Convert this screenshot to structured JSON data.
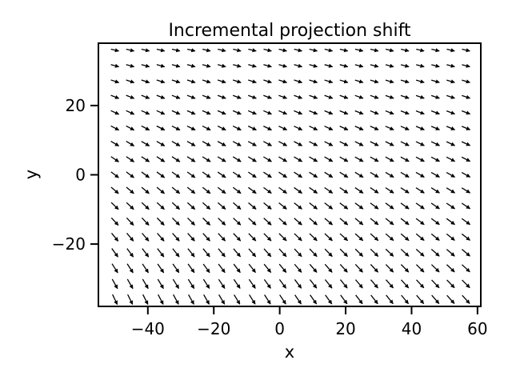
{
  "chart_data": {
    "type": "quiver",
    "title": "Incremental projection shift",
    "xlabel": "x",
    "ylabel": "y",
    "xlim": [
      -55,
      61
    ],
    "ylim": [
      -38,
      38
    ],
    "xticks": [
      -40,
      -20,
      0,
      20,
      40,
      60
    ],
    "xtick_labels": [
      "−40",
      "−20",
      "0",
      "20",
      "40",
      "60"
    ],
    "yticks": [
      -20,
      0,
      20
    ],
    "ytick_labels": [
      "−20",
      "0",
      "20"
    ],
    "grid": false,
    "grid_x_start": -50,
    "grid_x_step": 4.63,
    "grid_x_count": 24,
    "grid_y_start": -36,
    "grid_y_step": 4.5,
    "grid_y_count": 17,
    "vector_field_description": "Arrows point right-downward; near-horizontal at the top, steeper toward the bottom-left.",
    "arrow_color": "#000000"
  }
}
